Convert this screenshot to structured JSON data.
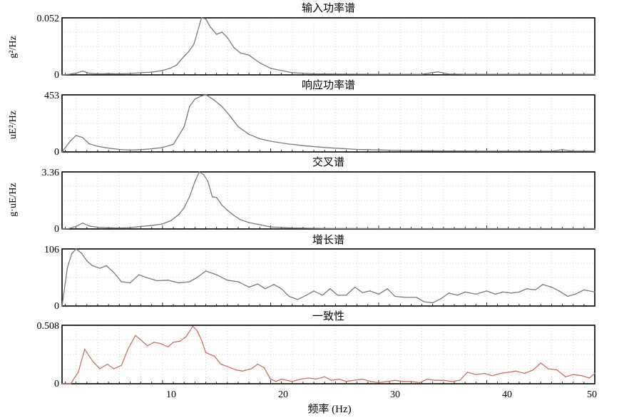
{
  "figure": {
    "xlabel": "频率 (Hz)",
    "xticks": [
      "10",
      "20",
      "30",
      "40",
      "50"
    ]
  },
  "chart_data": [
    {
      "type": "line",
      "title": "输入功率谱",
      "ylabel": "g²/Hz",
      "xlim": [
        0.7,
        50
      ],
      "ylim": [
        0,
        0.052
      ],
      "yticks": [
        "0",
        "0.052"
      ],
      "grid": true,
      "color": "#7a7a7a",
      "x": [
        0.7,
        1.3,
        2.0,
        2.6,
        3.2,
        4.0,
        5.0,
        6.0,
        7.0,
        8.0,
        9.0,
        10.0,
        10.7,
        11.3,
        12.0,
        12.4,
        12.9,
        13.2,
        13.6,
        14.0,
        14.4,
        15.0,
        15.5,
        16.0,
        16.6,
        17.2,
        18.0,
        19.0,
        20.0,
        22.0,
        24.0,
        26.0,
        30.0,
        34.0,
        35.5,
        36.5,
        38.0,
        42.0,
        46.0,
        50.0
      ],
      "y": [
        0.0,
        0.0005,
        0.0015,
        0.0035,
        0.0015,
        0.001,
        0.0012,
        0.001,
        0.0013,
        0.002,
        0.0025,
        0.004,
        0.006,
        0.009,
        0.017,
        0.021,
        0.028,
        0.038,
        0.052,
        0.051,
        0.044,
        0.037,
        0.039,
        0.034,
        0.025,
        0.02,
        0.018,
        0.011,
        0.006,
        0.002,
        0.001,
        0.0008,
        0.0006,
        0.0005,
        0.0028,
        0.0008,
        0.0005,
        0.0005,
        0.0005,
        0.0005
      ]
    },
    {
      "type": "line",
      "title": "响应功率谱",
      "ylabel": "uE²/Hz",
      "xlim": [
        0.7,
        50
      ],
      "ylim": [
        0,
        453
      ],
      "yticks": [
        "0",
        "453"
      ],
      "grid": true,
      "color": "#7a7a7a",
      "x": [
        0.7,
        1.5,
        2.0,
        2.6,
        3.2,
        4.0,
        5.0,
        6.0,
        7.0,
        8.0,
        9.0,
        10.0,
        11.0,
        12.0,
        12.5,
        13.0,
        13.5,
        14.0,
        14.8,
        15.5,
        16.2,
        17.0,
        18.0,
        19.0,
        20.0,
        21.5,
        23.0,
        25.0,
        28.0,
        32.0,
        36.0,
        40.0,
        44.0,
        46.0,
        47.0,
        48.0,
        50.0
      ],
      "y": [
        0,
        90,
        130,
        115,
        65,
        45,
        30,
        20,
        15,
        18,
        25,
        35,
        60,
        200,
        360,
        420,
        440,
        455,
        410,
        360,
        290,
        200,
        140,
        105,
        85,
        65,
        50,
        35,
        20,
        12,
        8,
        6,
        6,
        6,
        18,
        6,
        6
      ]
    },
    {
      "type": "line",
      "title": "交叉谱",
      "ylabel": "g·uE/Hz",
      "xlim": [
        0.7,
        50
      ],
      "ylim": [
        0,
        3.36
      ],
      "yticks": [
        "0",
        "3.36"
      ],
      "grid": true,
      "color": "#7a7a7a",
      "x": [
        0.7,
        1.3,
        2.0,
        2.6,
        3.2,
        4.0,
        5.0,
        6.0,
        7.0,
        8.0,
        9.0,
        10.0,
        10.8,
        11.5,
        12.0,
        12.5,
        13.0,
        13.4,
        13.8,
        14.2,
        14.6,
        15.0,
        15.5,
        16.0,
        16.6,
        17.2,
        18.0,
        19.0,
        20.0,
        22.0,
        25.0,
        30.0,
        35.0,
        40.0,
        45.0,
        50.0
      ],
      "y": [
        0,
        0.02,
        0.15,
        0.35,
        0.18,
        0.1,
        0.07,
        0.06,
        0.08,
        0.15,
        0.2,
        0.3,
        0.5,
        0.85,
        1.25,
        1.9,
        2.8,
        3.36,
        3.2,
        2.8,
        1.9,
        1.85,
        1.4,
        1.1,
        0.8,
        0.55,
        0.38,
        0.25,
        0.12,
        0.06,
        0.03,
        0.02,
        0.02,
        0.02,
        0.02,
        0.02
      ]
    },
    {
      "type": "line",
      "title": "增长谱",
      "ylabel": "",
      "xlim": [
        0.7,
        50
      ],
      "ylim": [
        0,
        106
      ],
      "yticks": [
        "0",
        "106"
      ],
      "grid": true,
      "color": "#7a7a7a",
      "x": [
        0.7,
        1.2,
        1.6,
        2.0,
        2.5,
        3.0,
        3.5,
        4.2,
        4.8,
        5.5,
        6.2,
        7.0,
        7.8,
        8.5,
        9.5,
        10.5,
        11.5,
        12.5,
        13.2,
        14.0,
        15.0,
        16.0,
        17.0,
        18.0,
        18.8,
        19.5,
        20.3,
        21.0,
        21.7,
        22.5,
        23.3,
        24.0,
        24.8,
        25.5,
        26.2,
        27.0,
        27.8,
        28.5,
        29.2,
        30.0,
        30.8,
        31.5,
        32.5,
        33.5,
        34.2,
        35.0,
        35.8,
        36.5,
        37.3,
        38.0,
        39.0,
        40.0,
        40.8,
        41.5,
        42.3,
        43.0,
        43.7,
        44.5,
        45.2,
        46.0,
        46.7,
        47.5,
        48.2,
        49.0,
        50.0
      ],
      "y": [
        0,
        72,
        97,
        106,
        98,
        84,
        75,
        70,
        75,
        62,
        45,
        43,
        58,
        53,
        47,
        48,
        43,
        45,
        53,
        65,
        58,
        48,
        45,
        35,
        41,
        32,
        40,
        32,
        18,
        12,
        20,
        28,
        20,
        32,
        20,
        20,
        35,
        25,
        28,
        22,
        32,
        18,
        16,
        16,
        8,
        6,
        14,
        24,
        20,
        26,
        22,
        28,
        22,
        26,
        24,
        26,
        32,
        30,
        40,
        35,
        28,
        18,
        22,
        30,
        26
      ]
    },
    {
      "type": "line",
      "title": "一致性",
      "ylabel": "",
      "xlim": [
        0.7,
        50
      ],
      "ylim": [
        0,
        0.508
      ],
      "yticks": [
        "0",
        "0.508"
      ],
      "grid": true,
      "color": "#c77266",
      "x": [
        0.7,
        1.5,
        2.2,
        2.8,
        3.5,
        4.2,
        4.9,
        5.5,
        6.2,
        6.8,
        7.5,
        8.0,
        8.6,
        9.2,
        9.8,
        10.5,
        11.0,
        11.6,
        12.2,
        12.8,
        13.2,
        13.6,
        14.0,
        14.8,
        15.4,
        16.0,
        16.8,
        17.4,
        18.2,
        18.8,
        19.4,
        20.0,
        20.5,
        21.0,
        22.0,
        22.8,
        23.5,
        24.2,
        25.0,
        25.6,
        26.3,
        27.0,
        27.7,
        28.5,
        29.2,
        30.0,
        30.8,
        31.5,
        32.3,
        33.0,
        33.8,
        34.5,
        35.2,
        36.0,
        36.8,
        37.5,
        38.2,
        39.0,
        39.8,
        40.5,
        41.3,
        42.0,
        42.7,
        43.5,
        44.3,
        45.0,
        45.7,
        46.5,
        47.3,
        48.0,
        48.8,
        49.5,
        50.0
      ],
      "y": [
        0.0,
        0.0,
        0.1,
        0.3,
        0.2,
        0.13,
        0.17,
        0.13,
        0.16,
        0.3,
        0.42,
        0.38,
        0.33,
        0.36,
        0.35,
        0.32,
        0.36,
        0.37,
        0.41,
        0.5,
        0.46,
        0.38,
        0.27,
        0.24,
        0.17,
        0.15,
        0.12,
        0.11,
        0.13,
        0.17,
        0.14,
        0.04,
        0.02,
        0.04,
        0.02,
        0.04,
        0.05,
        0.04,
        0.06,
        0.03,
        0.04,
        0.02,
        0.03,
        0.04,
        0.02,
        0.01,
        0.02,
        0.03,
        0.02,
        0.02,
        0.01,
        0.04,
        0.03,
        0.03,
        0.02,
        0.03,
        0.1,
        0.08,
        0.09,
        0.07,
        0.09,
        0.1,
        0.11,
        0.09,
        0.12,
        0.18,
        0.13,
        0.12,
        0.06,
        0.08,
        0.07,
        0.05,
        0.09
      ]
    }
  ]
}
